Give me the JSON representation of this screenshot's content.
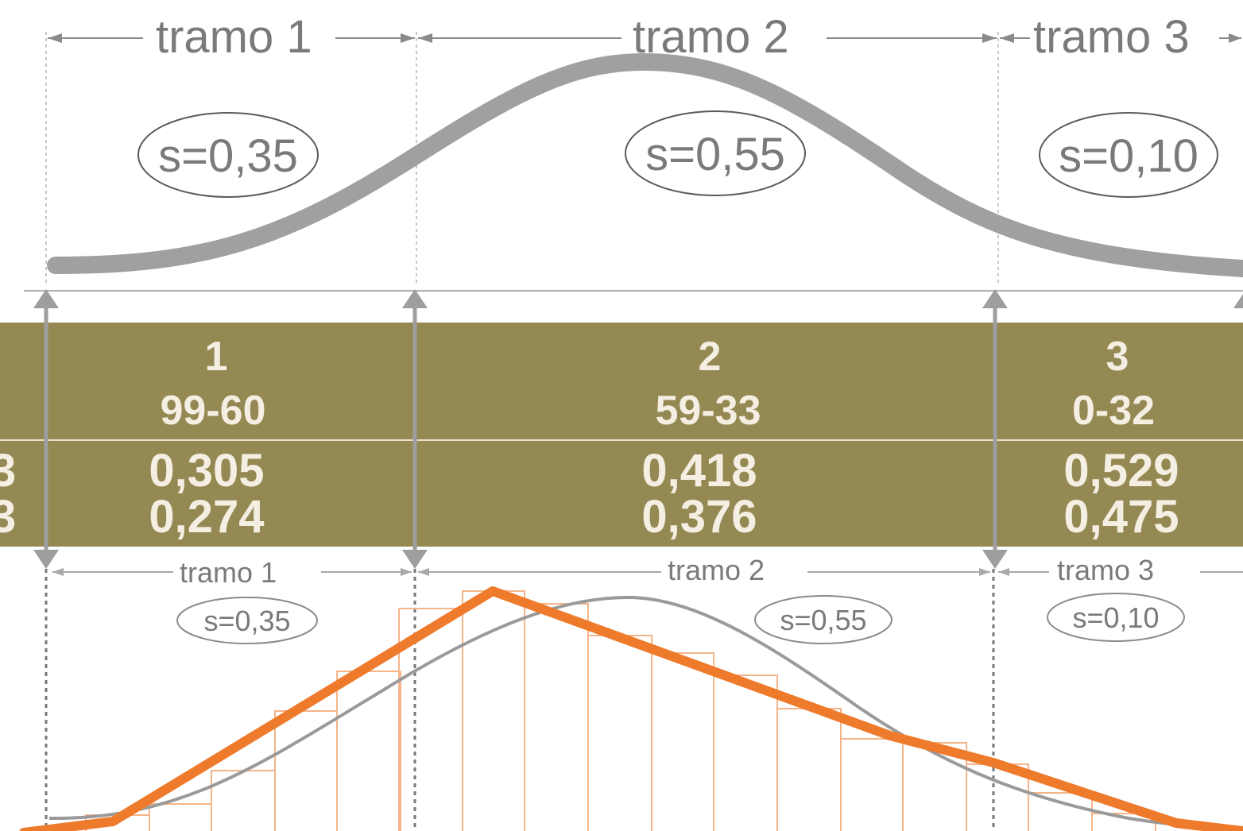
{
  "colors": {
    "band": "#948853",
    "band_text": "#f4efe2",
    "curve_gray": "#999999",
    "orange": "#ee7a2c",
    "bar_stroke": "#f5b48a",
    "divider": "#aaaaaa"
  },
  "top_section": {
    "segments": [
      {
        "label": "tramo 1",
        "s": "s=0,35"
      },
      {
        "label": "tramo 2",
        "s": "s=0,55"
      },
      {
        "label": "tramo 3",
        "s": "s=0,10"
      }
    ]
  },
  "band": {
    "left_partial": [
      "3",
      "3"
    ],
    "columns": [
      {
        "num": "1",
        "range": "99-60",
        "v1": "0,305",
        "v2": "0,274"
      },
      {
        "num": "2",
        "range": "59-33",
        "v1": "0,418",
        "v2": "0,376"
      },
      {
        "num": "3",
        "range": "0-32",
        "v1": "0,529",
        "v2": "0,475"
      }
    ]
  },
  "bottom_section": {
    "segments": [
      {
        "label": "tramo 1",
        "s": "s=0,35"
      },
      {
        "label": "tramo 2",
        "s": "s=0,55"
      },
      {
        "label": "tramo 3",
        "s": "s=0,10"
      }
    ]
  }
}
